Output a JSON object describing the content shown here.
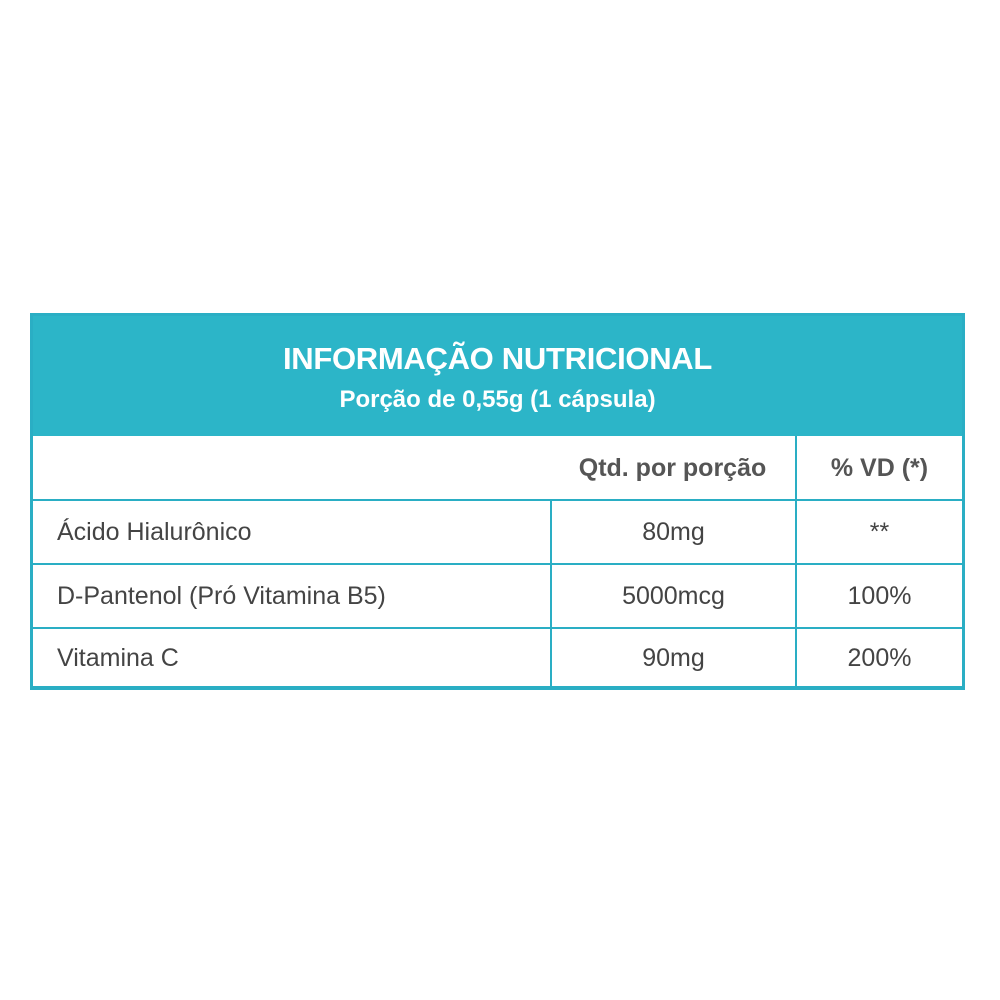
{
  "header": {
    "title": "INFORMAÇÃO NUTRICIONAL",
    "subtitle": "Porção de 0,55g (1 cápsula)"
  },
  "columns": [
    "",
    "Qtd. por porção",
    "% VD (*)"
  ],
  "rows": [
    {
      "name": "Ácido Hialurônico",
      "qty": "80mg",
      "vd": "**"
    },
    {
      "name": "D-Pantenol (Pró Vitamina B5)",
      "qty": "5000mcg",
      "vd": "100%"
    },
    {
      "name": "Vitamina C",
      "qty": "90mg",
      "vd": "200%"
    }
  ],
  "colors": {
    "accent": "#2cb5c8",
    "text": "#444444"
  }
}
